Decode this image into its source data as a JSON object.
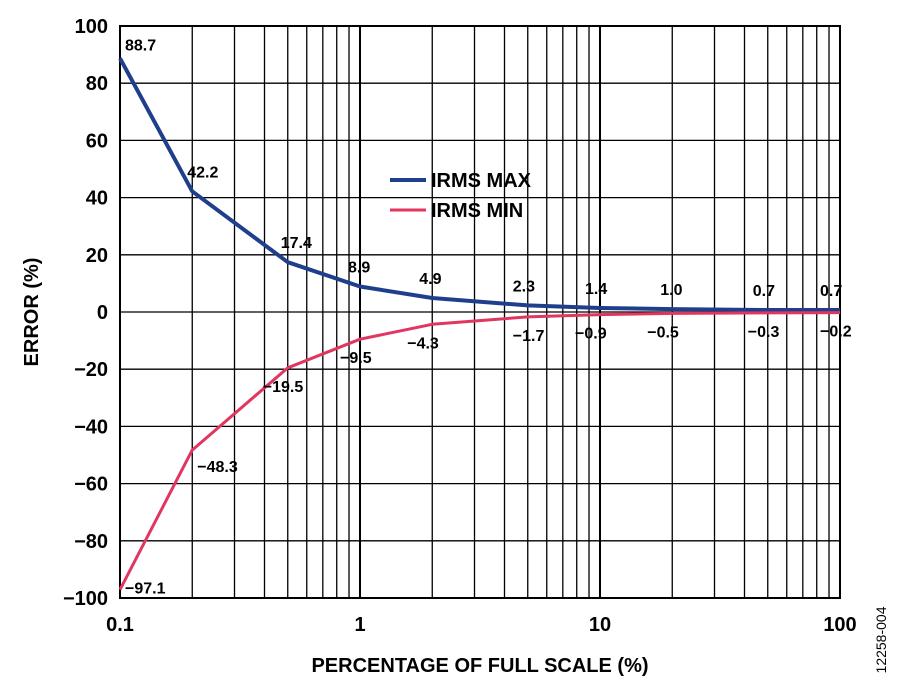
{
  "chart_data": {
    "type": "line",
    "xlabel": "PERCENTAGE OF FULL SCALE (%)",
    "ylabel": "ERROR (%)",
    "x_scale": "log",
    "xlim": [
      0.1,
      100
    ],
    "ylim": [
      -100,
      100
    ],
    "x_ticks": [
      "0.1",
      "1",
      "10",
      "100"
    ],
    "y_ticks": [
      "100",
      "80",
      "60",
      "40",
      "20",
      "0",
      "-20",
      "-40",
      "-60",
      "-80",
      "-100"
    ],
    "grid": true,
    "legend_position": "upper-center",
    "series": [
      {
        "name": "IRMS MAX",
        "color": "#1f3f8c",
        "x": [
          0.1,
          0.2,
          0.5,
          1,
          2,
          5,
          10,
          20,
          50,
          100
        ],
        "values": [
          88.7,
          42.2,
          17.4,
          8.9,
          4.9,
          2.3,
          1.4,
          1.0,
          0.7,
          0.7
        ],
        "labels": [
          "88.7",
          "42.2",
          "17.4",
          "8.9",
          "4.9",
          "2.3",
          "1.4",
          "1.0",
          "0.7",
          "0.7"
        ]
      },
      {
        "name": "IRMS MIN",
        "color": "#e0365f",
        "x": [
          0.1,
          0.2,
          0.5,
          1,
          2,
          5,
          10,
          20,
          50,
          100
        ],
        "values": [
          -97.1,
          -48.3,
          -19.5,
          -9.5,
          -4.3,
          -1.7,
          -0.9,
          -0.5,
          -0.3,
          -0.2
        ],
        "labels": [
          "−97.1",
          "−48.3",
          "−19.5",
          "−9.5",
          "−4.3",
          "−1.7",
          "−0.9",
          "−0.5",
          "−0.3",
          "−0.2"
        ]
      }
    ]
  },
  "figure_id": "12258-004"
}
